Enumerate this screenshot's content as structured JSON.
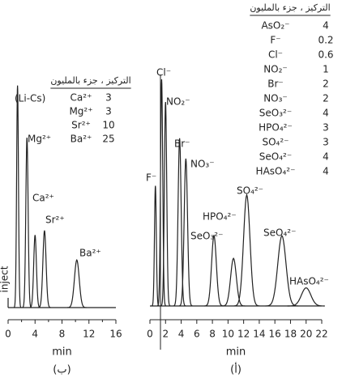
{
  "chart_data": [
    {
      "type": "chromatogram",
      "panel_label": "(ب)",
      "x_label": "min",
      "annotation": "inject",
      "xlim": [
        0,
        16
      ],
      "xticks": [
        0,
        4,
        8,
        12,
        16
      ],
      "xminorticks": [
        2,
        6,
        10,
        14
      ],
      "peaks": {
        "names": [
          "(Li-Cs)",
          "Mg²⁺",
          "Ca²⁺",
          "Sr²⁺",
          "Ba²⁺"
        ],
        "x": [
          1.4,
          2.8,
          4.0,
          5.4,
          10.2
        ],
        "heights": [
          98,
          75,
          32,
          34,
          21
        ]
      },
      "concentration_table": {
        "title": "التركيز ، جزء بالمليون",
        "ions": [
          "Ca²⁺",
          "Mg²⁺",
          "Sr²⁺",
          "Ba²⁺"
        ],
        "values": [
          3,
          3,
          10,
          25
        ]
      }
    },
    {
      "type": "chromatogram",
      "panel_label": "(أ)",
      "x_label": "min",
      "xlim": [
        0,
        22
      ],
      "xticks": [
        0,
        2,
        4,
        6,
        8,
        10,
        12,
        14,
        16,
        18,
        20,
        22
      ],
      "peaks": {
        "names": [
          "F⁻",
          "Cl⁻",
          "NO₂⁻",
          "Br⁻",
          "NO₃⁻",
          "SeO₃²⁻",
          "HPO₄²⁻",
          "SO₄²⁻",
          "SeO₄²⁻",
          "HAsO₄²⁻"
        ],
        "x": [
          0.7,
          1.5,
          2.0,
          3.8,
          4.6,
          8.2,
          10.7,
          12.4,
          16.9,
          20.0
        ],
        "heights": [
          53,
          100,
          90,
          74,
          65,
          31,
          21,
          49,
          31,
          8
        ]
      },
      "concentration_table": {
        "title": "التركيز ، جزء بالمليون",
        "ions": [
          "AsO₂⁻",
          "F⁻",
          "Cl⁻",
          "NO₂⁻",
          "Br⁻",
          "NO₃⁻",
          "SeO₃²⁻",
          "HPO₄²⁻",
          "SO₄²⁻",
          "SeO₄²⁻",
          "HAsO₄²⁻"
        ],
        "values": [
          4,
          0.2,
          0.6,
          1,
          2,
          2,
          4,
          3,
          3,
          4,
          4
        ]
      }
    }
  ]
}
